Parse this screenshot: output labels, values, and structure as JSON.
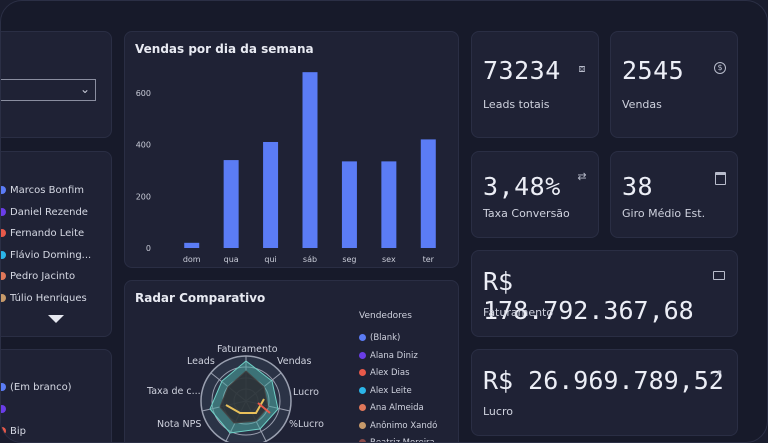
{
  "bar_chart": {
    "title": "Vendas por dia da semana"
  },
  "chart_data": {
    "type": "bar",
    "categories": [
      "dom",
      "qua",
      "qui",
      "sáb",
      "seg",
      "sex",
      "ter"
    ],
    "values": [
      20,
      340,
      410,
      680,
      335,
      335,
      420
    ],
    "ylim": [
      0,
      700
    ],
    "yticks": [
      0,
      200,
      400,
      600
    ],
    "color": "#5b7cf5"
  },
  "kpis": {
    "leads": {
      "value": "73234",
      "label": "Leads totais",
      "icon": "target-icon"
    },
    "vendas": {
      "value": "2545",
      "label": "Vendas",
      "icon": "dollar-circle-icon"
    },
    "taxa": {
      "value": "3,48%",
      "label": "Taxa Conversão",
      "icon": "refresh-icon"
    },
    "giro": {
      "value": "38",
      "label": "Giro Médio Est.",
      "icon": "calendar-icon"
    },
    "faturamento": {
      "value": "R$ 178.792.367,68",
      "label": "Faturamento",
      "icon": "wallet-icon"
    },
    "lucro": {
      "value": "R$ 26.969.789,52",
      "label": "Lucro",
      "icon": "trend-up-icon"
    }
  },
  "sellers_list": [
    {
      "name": "Marcos Bonfim",
      "color": "#5b7cf5"
    },
    {
      "name": "Daniel Rezende",
      "color": "#6a3de8"
    },
    {
      "name": "Fernando Leite",
      "color": "#e8594a"
    },
    {
      "name": "Flávio Doming...",
      "color": "#2bb5e8"
    },
    {
      "name": "Pedro Jacinto",
      "color": "#e0775a"
    },
    {
      "name": "Túlio Henriques",
      "color": "#c79a6a"
    }
  ],
  "bottom_list": [
    {
      "name": "(Em branco)",
      "color": "#5b7cf5"
    },
    {
      "name": "",
      "color": "#6a3de8"
    },
    {
      "name": "Bip",
      "color": "#e8594a"
    }
  ],
  "radar": {
    "title": "Radar Comparativo",
    "legend_title": "Vendedores",
    "axes": [
      "Faturamento",
      "Vendas",
      "Lucro",
      "%Lucro",
      "Nota NPS",
      "Taxa de c...",
      "Leads"
    ],
    "legend": [
      {
        "name": "(Blank)",
        "color": "#5b7cf5"
      },
      {
        "name": "Alana Diniz",
        "color": "#6a3de8"
      },
      {
        "name": "Alex Dias",
        "color": "#e8594a"
      },
      {
        "name": "Alex Leite",
        "color": "#2bb5e8"
      },
      {
        "name": "Ana Almeida",
        "color": "#e0775a"
      },
      {
        "name": "Anônimo Xandó",
        "color": "#c79a6a"
      },
      {
        "name": "Beatriz Moreira",
        "color": "#8a4a4a"
      }
    ]
  }
}
